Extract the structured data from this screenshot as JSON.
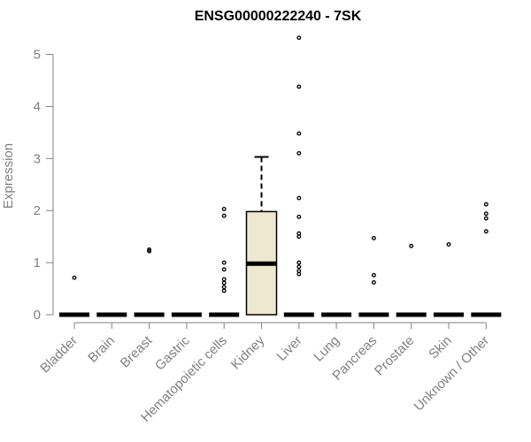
{
  "chart_data": {
    "type": "box",
    "title": "ENSG00000222240 - 7SK",
    "xlabel": "",
    "ylabel": "Expression",
    "ylim": [
      0,
      5
    ],
    "yticks": [
      0,
      1,
      2,
      3,
      4,
      5
    ],
    "grid": false,
    "categories": [
      "Bladder",
      "Brain",
      "Breast",
      "Gastric",
      "Hematopoietic cells",
      "Kidney",
      "Liver",
      "Lung",
      "Pancreas",
      "Prostate",
      "Skin",
      "Unknown / Other"
    ],
    "boxes": [
      {
        "category": "Bladder",
        "q1": 0,
        "median": 0,
        "q3": 0,
        "whisker_low": 0,
        "whisker_high": 0,
        "outliers": [
          0.71
        ]
      },
      {
        "category": "Brain",
        "q1": 0,
        "median": 0,
        "q3": 0,
        "whisker_low": 0,
        "whisker_high": 0,
        "outliers": []
      },
      {
        "category": "Breast",
        "q1": 0,
        "median": 0,
        "q3": 0,
        "whisker_low": 0,
        "whisker_high": 0,
        "outliers": [
          1.22,
          1.25
        ]
      },
      {
        "category": "Gastric",
        "q1": 0,
        "median": 0,
        "q3": 0,
        "whisker_low": 0,
        "whisker_high": 0,
        "outliers": []
      },
      {
        "category": "Hematopoietic cells",
        "q1": 0,
        "median": 0,
        "q3": 0,
        "whisker_low": 0,
        "whisker_high": 0,
        "outliers": [
          0.46,
          0.53,
          0.61,
          0.68,
          0.87,
          1.0,
          1.9,
          2.03
        ]
      },
      {
        "category": "Kidney",
        "q1": 0,
        "median": 0.98,
        "q3": 1.98,
        "whisker_low": 0,
        "whisker_high": 3.03,
        "outliers": []
      },
      {
        "category": "Liver",
        "q1": 0,
        "median": 0,
        "q3": 0,
        "whisker_low": 0,
        "whisker_high": 0,
        "outliers": [
          0.78,
          0.84,
          0.92,
          1.0,
          1.5,
          1.56,
          1.88,
          2.24,
          3.1,
          3.48,
          4.38,
          5.32
        ]
      },
      {
        "category": "Lung",
        "q1": 0,
        "median": 0,
        "q3": 0,
        "whisker_low": 0,
        "whisker_high": 0,
        "outliers": []
      },
      {
        "category": "Pancreas",
        "q1": 0,
        "median": 0,
        "q3": 0,
        "whisker_low": 0,
        "whisker_high": 0,
        "outliers": [
          0.62,
          0.76,
          1.47
        ]
      },
      {
        "category": "Prostate",
        "q1": 0,
        "median": 0,
        "q3": 0,
        "whisker_low": 0,
        "whisker_high": 0,
        "outliers": [
          1.32
        ]
      },
      {
        "category": "Skin",
        "q1": 0,
        "median": 0,
        "q3": 0,
        "whisker_low": 0,
        "whisker_high": 0,
        "outliers": [
          1.35
        ]
      },
      {
        "category": "Unknown / Other",
        "q1": 0,
        "median": 0,
        "q3": 0,
        "whisker_low": 0,
        "whisker_high": 0,
        "outliers": [
          1.6,
          1.85,
          1.94,
          2.12
        ]
      }
    ],
    "colors": {
      "box_fill": "#efe8d0",
      "box_line": "#000000",
      "axis": "#808080",
      "text": "#808080",
      "title": "#000000"
    }
  }
}
